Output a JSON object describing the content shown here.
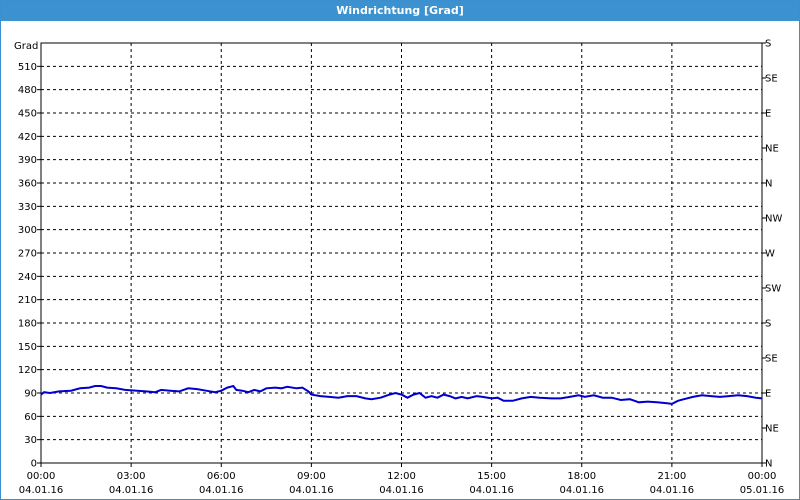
{
  "window": {
    "title": "Windrichtung [Grad]"
  },
  "chart_data": {
    "type": "line",
    "title": "Windrichtung [Grad]",
    "ylabel": "Grad",
    "ylim": [
      0,
      540
    ],
    "y_ticks": [
      0,
      30,
      60,
      90,
      120,
      150,
      180,
      210,
      240,
      270,
      300,
      330,
      360,
      390,
      420,
      450,
      480,
      510
    ],
    "right_axis_labels": [
      {
        "deg": 0,
        "label": "N"
      },
      {
        "deg": 45,
        "label": "NE"
      },
      {
        "deg": 90,
        "label": "E"
      },
      {
        "deg": 135,
        "label": "SE"
      },
      {
        "deg": 180,
        "label": "S"
      },
      {
        "deg": 225,
        "label": "SW"
      },
      {
        "deg": 270,
        "label": "W"
      },
      {
        "deg": 315,
        "label": "NW"
      },
      {
        "deg": 360,
        "label": "N"
      },
      {
        "deg": 405,
        "label": "NE"
      },
      {
        "deg": 450,
        "label": "E"
      },
      {
        "deg": 495,
        "label": "SE"
      },
      {
        "deg": 540,
        "label": "S"
      }
    ],
    "xlim_hours": [
      0,
      24
    ],
    "x_ticks": [
      {
        "hour": 0,
        "time": "00:00",
        "date": "04.01.16"
      },
      {
        "hour": 3,
        "time": "03:00",
        "date": "04.01.16"
      },
      {
        "hour": 6,
        "time": "06:00",
        "date": "04.01.16"
      },
      {
        "hour": 9,
        "time": "09:00",
        "date": "04.01.16"
      },
      {
        "hour": 12,
        "time": "12:00",
        "date": "04.01.16"
      },
      {
        "hour": 15,
        "time": "15:00",
        "date": "04.01.16"
      },
      {
        "hour": 18,
        "time": "18:00",
        "date": "04.01.16"
      },
      {
        "hour": 21,
        "time": "21:00",
        "date": "04.01.16"
      },
      {
        "hour": 24,
        "time": "00:00",
        "date": "05.01.16"
      }
    ],
    "grid": true,
    "line_color": "#0000cc",
    "series": [
      {
        "values": [
          [
            0.0,
            88
          ],
          [
            0.1,
            91
          ],
          [
            0.3,
            90
          ],
          [
            0.6,
            92
          ],
          [
            1.0,
            93
          ],
          [
            1.3,
            96
          ],
          [
            1.6,
            97
          ],
          [
            1.8,
            99
          ],
          [
            2.0,
            99
          ],
          [
            2.2,
            97
          ],
          [
            2.5,
            96
          ],
          [
            2.8,
            94
          ],
          [
            3.2,
            93
          ],
          [
            3.5,
            92
          ],
          [
            3.8,
            91
          ],
          [
            4.0,
            94
          ],
          [
            4.3,
            93
          ],
          [
            4.6,
            92
          ],
          [
            4.9,
            96
          ],
          [
            5.2,
            95
          ],
          [
            5.5,
            93
          ],
          [
            5.8,
            91
          ],
          [
            6.0,
            93
          ],
          [
            6.2,
            97
          ],
          [
            6.4,
            99
          ],
          [
            6.5,
            94
          ],
          [
            6.7,
            93
          ],
          [
            6.9,
            91
          ],
          [
            7.1,
            94
          ],
          [
            7.3,
            92
          ],
          [
            7.5,
            96
          ],
          [
            7.8,
            97
          ],
          [
            8.0,
            96
          ],
          [
            8.2,
            98
          ],
          [
            8.5,
            96
          ],
          [
            8.7,
            97
          ],
          [
            8.9,
            92
          ],
          [
            9.0,
            88
          ],
          [
            9.3,
            86
          ],
          [
            9.6,
            85
          ],
          [
            9.9,
            84
          ],
          [
            10.2,
            86
          ],
          [
            10.5,
            86
          ],
          [
            10.8,
            83
          ],
          [
            11.0,
            82
          ],
          [
            11.3,
            84
          ],
          [
            11.6,
            88
          ],
          [
            11.8,
            90
          ],
          [
            12.0,
            88
          ],
          [
            12.2,
            84
          ],
          [
            12.4,
            88
          ],
          [
            12.6,
            90
          ],
          [
            12.8,
            84
          ],
          [
            13.0,
            86
          ],
          [
            13.2,
            84
          ],
          [
            13.4,
            88
          ],
          [
            13.6,
            86
          ],
          [
            13.8,
            83
          ],
          [
            14.0,
            85
          ],
          [
            14.2,
            83
          ],
          [
            14.5,
            86
          ],
          [
            14.7,
            85
          ],
          [
            15.0,
            83
          ],
          [
            15.2,
            84
          ],
          [
            15.4,
            80
          ],
          [
            15.7,
            80
          ],
          [
            16.0,
            83
          ],
          [
            16.3,
            85
          ],
          [
            16.6,
            84
          ],
          [
            17.0,
            83
          ],
          [
            17.3,
            83
          ],
          [
            17.6,
            85
          ],
          [
            17.9,
            87
          ],
          [
            18.1,
            85
          ],
          [
            18.4,
            87
          ],
          [
            18.7,
            84
          ],
          [
            19.0,
            84
          ],
          [
            19.3,
            81
          ],
          [
            19.6,
            82
          ],
          [
            19.9,
            78
          ],
          [
            20.2,
            79
          ],
          [
            20.5,
            78
          ],
          [
            20.8,
            77
          ],
          [
            21.0,
            76
          ],
          [
            21.2,
            80
          ],
          [
            21.4,
            82
          ],
          [
            21.7,
            85
          ],
          [
            22.0,
            87
          ],
          [
            22.3,
            86
          ],
          [
            22.6,
            85
          ],
          [
            22.9,
            86
          ],
          [
            23.2,
            87
          ],
          [
            23.5,
            86
          ],
          [
            23.8,
            84
          ],
          [
            24.0,
            83
          ]
        ]
      }
    ]
  }
}
